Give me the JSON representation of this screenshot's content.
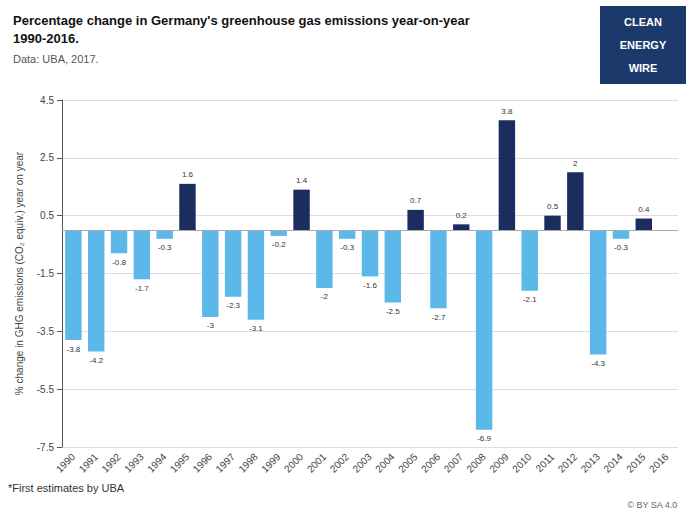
{
  "chart_data": {
    "type": "bar",
    "title": "Percentage change in Germany's greenhouse gas emissions year-on-year\n1990-2016.",
    "subtitle": "Data: UBA, 2017.",
    "ylabel": "% change in GHG emissions (CO₂ equiv.) year on year",
    "categories": [
      1990,
      1991,
      1992,
      1993,
      1994,
      1995,
      1996,
      1997,
      1998,
      1999,
      2000,
      2001,
      2002,
      2003,
      2004,
      2005,
      2006,
      2007,
      2008,
      2009,
      2010,
      2011,
      2012,
      2013,
      2014,
      2015,
      2016
    ],
    "values": [
      -3.8,
      -4.2,
      -0.8,
      -1.7,
      -0.3,
      1.6,
      -3.0,
      -2.3,
      -3.1,
      -0.2,
      1.4,
      -2.0,
      -0.3,
      -1.6,
      -2.5,
      0.7,
      -2.7,
      0.2,
      -6.9,
      3.8,
      -2.1,
      0.5,
      2.0,
      -4.3,
      -0.3,
      0.4,
      0.0
    ],
    "value_labels": [
      "-3.8",
      "-4.2",
      "-0.8",
      "-1.7",
      "-0.3",
      "1.6",
      "-3",
      "-2.3",
      "-3.1",
      "-0.2",
      "1.4",
      "-2",
      "-0.3",
      "-1.6",
      "-2.5",
      "0.7",
      "-2.7",
      "0.2",
      "-6.9",
      "3.8",
      "-2.1",
      "0.5",
      "2",
      "-4.3",
      "-0.3",
      "0.4",
      null
    ],
    "colors": [
      "#5bb8e8",
      "#5bb8e8",
      "#5bb8e8",
      "#5bb8e8",
      "#5bb8e8",
      "#1b2d5e",
      "#5bb8e8",
      "#5bb8e8",
      "#5bb8e8",
      "#5bb8e8",
      "#1b2d5e",
      "#5bb8e8",
      "#5bb8e8",
      "#5bb8e8",
      "#5bb8e8",
      "#1b2d5e",
      "#5bb8e8",
      "#1b2d5e",
      "#5bb8e8",
      "#1b2d5e",
      "#5bb8e8",
      "#1b2d5e",
      "#1b2d5e",
      "#5bb8e8",
      "#5bb8e8",
      "#1b2d5e",
      "#5bb8e8"
    ],
    "data_labels": true,
    "reference_line": 0,
    "ylim": [
      -7.5,
      4.5
    ],
    "yticks": [
      -7.5,
      -5.5,
      -3.5,
      -1.5,
      0.5,
      2.5,
      4.5
    ],
    "grid": true,
    "footnote": "*First estimates by UBA",
    "credit": "© BY SA 4.0",
    "logo_text": [
      "CLEAN",
      "ENERGY",
      "WIRE"
    ]
  }
}
